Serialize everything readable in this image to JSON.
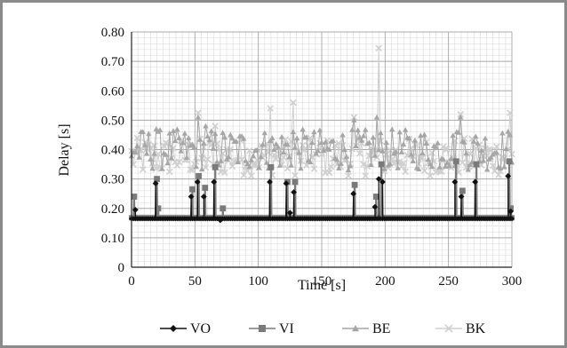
{
  "chart_data": {
    "type": "line",
    "title": "",
    "xlabel": "Time [s]",
    "ylabel": "Delay [s]",
    "xlim": [
      0,
      300
    ],
    "ylim": [
      0,
      0.8
    ],
    "x_ticks": [
      "0",
      "50",
      "100",
      "150",
      "200",
      "250",
      "300"
    ],
    "y_ticks": [
      "0",
      "0.10",
      "0.20",
      "0.30",
      "0.40",
      "0.50",
      "0.60",
      "0.70",
      "0.80"
    ],
    "grid": true,
    "legend_position": "bottom",
    "series": [
      {
        "name": "VO",
        "color": "#111111",
        "marker": "diamond",
        "baseline": 0.165,
        "spikes": [
          [
            3,
            0.195
          ],
          [
            19,
            0.285
          ],
          [
            47,
            0.24
          ],
          [
            52,
            0.29
          ],
          [
            57,
            0.24
          ],
          [
            65,
            0.29
          ],
          [
            70,
            0.16
          ],
          [
            109,
            0.29
          ],
          [
            122,
            0.285
          ],
          [
            125,
            0.185
          ],
          [
            128,
            0.255
          ],
          [
            175,
            0.25
          ],
          [
            192,
            0.205
          ],
          [
            195,
            0.3
          ],
          [
            198,
            0.29
          ],
          [
            255,
            0.29
          ],
          [
            260,
            0.24
          ],
          [
            271,
            0.29
          ],
          [
            297,
            0.31
          ],
          [
            299,
            0.19
          ]
        ]
      },
      {
        "name": "VI",
        "color": "#7a7a7a",
        "marker": "square",
        "baseline": 0.168,
        "spikes": [
          [
            2,
            0.24
          ],
          [
            20,
            0.3
          ],
          [
            21,
            0.2
          ],
          [
            48,
            0.265
          ],
          [
            53,
            0.31
          ],
          [
            58,
            0.27
          ],
          [
            66,
            0.34
          ],
          [
            72,
            0.2
          ],
          [
            110,
            0.34
          ],
          [
            123,
            0.29
          ],
          [
            129,
            0.29
          ],
          [
            176,
            0.28
          ],
          [
            193,
            0.24
          ],
          [
            197,
            0.35
          ],
          [
            256,
            0.36
          ],
          [
            261,
            0.26
          ],
          [
            272,
            0.35
          ],
          [
            298,
            0.36
          ],
          [
            299,
            0.2
          ]
        ]
      },
      {
        "name": "BE",
        "color": "#a6a6a6",
        "marker": "triangle",
        "baseline": 0.4,
        "band": [
          0.33,
          0.47
        ],
        "peaks": [
          [
            20,
            0.47
          ],
          [
            52,
            0.51
          ],
          [
            58,
            0.48
          ],
          [
            110,
            0.43
          ],
          [
            128,
            0.46
          ],
          [
            175,
            0.5
          ],
          [
            193,
            0.51
          ],
          [
            256,
            0.46
          ],
          [
            259,
            0.51
          ],
          [
            298,
            0.45
          ]
        ]
      },
      {
        "name": "BK",
        "color": "#cfcfcf",
        "marker": "cross",
        "baseline": 0.36,
        "band": [
          0.31,
          0.44
        ],
        "peaks": [
          [
            53,
            0.525
          ],
          [
            66,
            0.48
          ],
          [
            110,
            0.54
          ],
          [
            128,
            0.56
          ],
          [
            176,
            0.51
          ],
          [
            195,
            0.745
          ],
          [
            259,
            0.52
          ],
          [
            298,
            0.525
          ]
        ]
      }
    ]
  }
}
